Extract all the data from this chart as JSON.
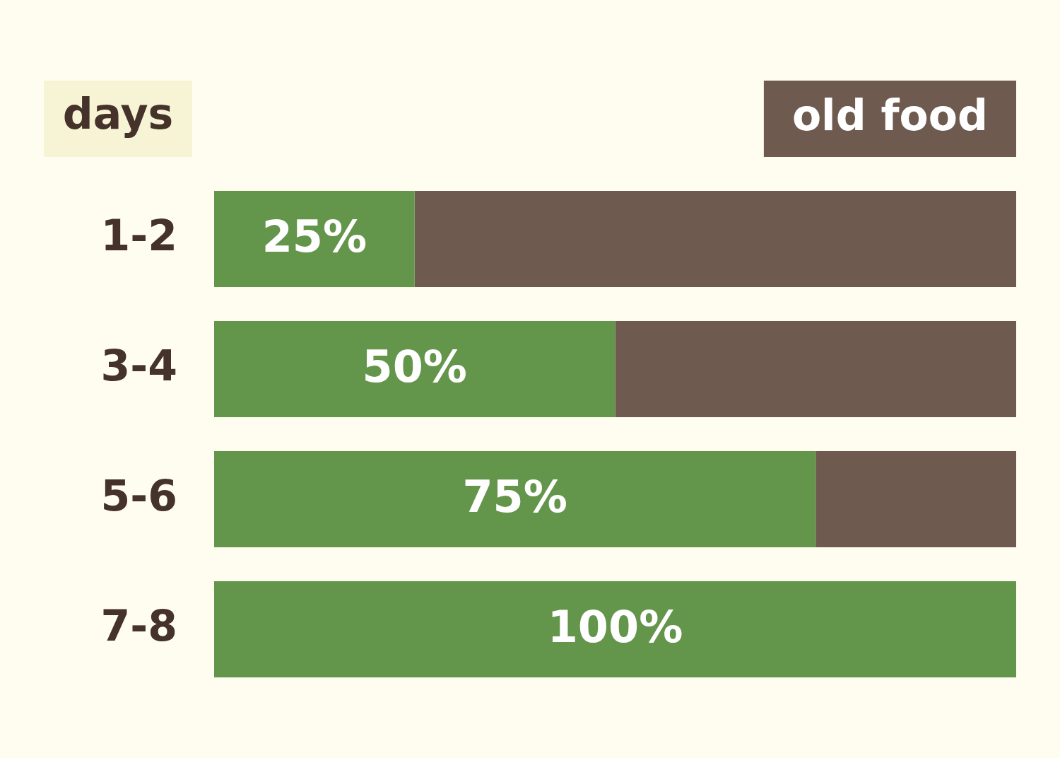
{
  "chart_data": {
    "type": "bar",
    "orientation": "horizontal",
    "stacked": true,
    "ylabel": "days",
    "categories": [
      "1-2",
      "3-4",
      "5-6",
      "7-8"
    ],
    "series": [
      {
        "color": "#63954b",
        "values": [
          25,
          50,
          75,
          100
        ],
        "value_labels": [
          "25%",
          "50%",
          "75%",
          "100%"
        ]
      },
      {
        "name": "old food",
        "color": "#6f5a50",
        "values": [
          75,
          50,
          25,
          0
        ]
      }
    ],
    "xlim": [
      0,
      100
    ],
    "tick_labels": "y",
    "legend": "top right"
  }
}
